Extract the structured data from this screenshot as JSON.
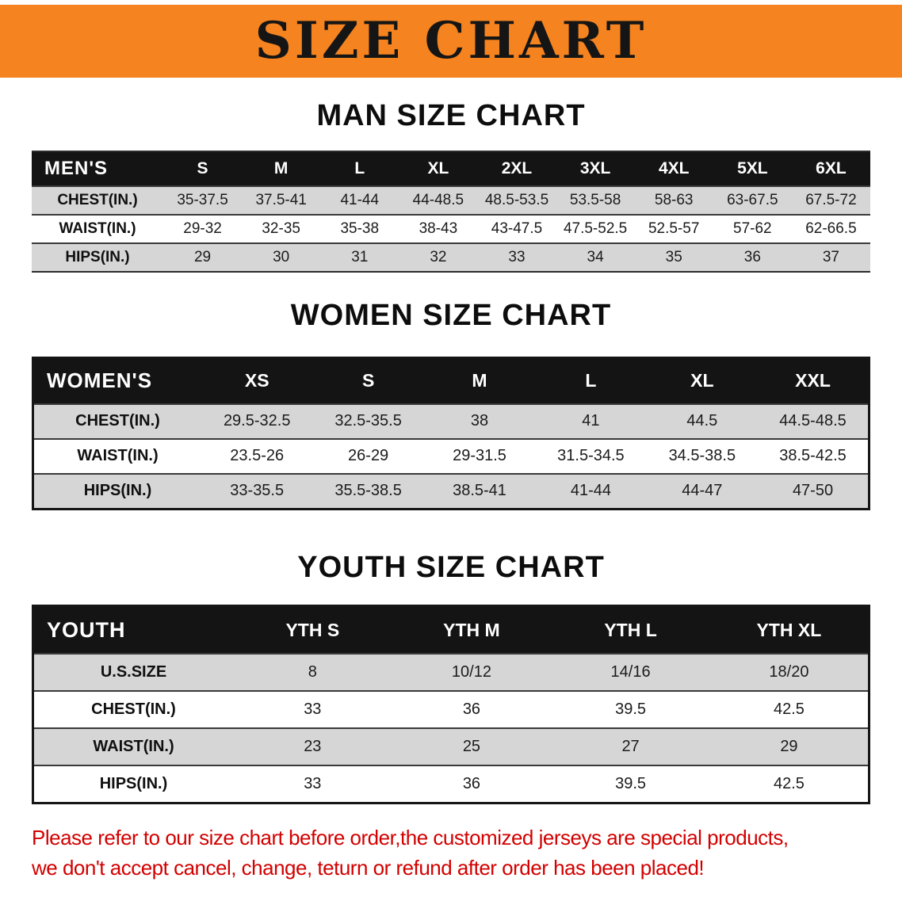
{
  "banner": {
    "title": "SIZE CHART"
  },
  "chart_data": [
    {
      "type": "table",
      "title": "MAN SIZE CHART",
      "table_label": "MEN'S",
      "columns": [
        "S",
        "M",
        "L",
        "XL",
        "2XL",
        "3XL",
        "4XL",
        "5XL",
        "6XL"
      ],
      "rows": [
        {
          "label": "CHEST(IN.)",
          "values": [
            "35-37.5",
            "37.5-41",
            "41-44",
            "44-48.5",
            "48.5-53.5",
            "53.5-58",
            "58-63",
            "63-67.5",
            "67.5-72"
          ]
        },
        {
          "label": "WAIST(IN.)",
          "values": [
            "29-32",
            "32-35",
            "35-38",
            "38-43",
            "43-47.5",
            "47.5-52.5",
            "52.5-57",
            "57-62",
            "62-66.5"
          ]
        },
        {
          "label": "HIPS(IN.)",
          "values": [
            "29",
            "30",
            "31",
            "32",
            "33",
            "34",
            "35",
            "36",
            "37"
          ]
        }
      ]
    },
    {
      "type": "table",
      "title": "WOMEN SIZE CHART",
      "table_label": "WOMEN'S",
      "columns": [
        "XS",
        "S",
        "M",
        "L",
        "XL",
        "XXL"
      ],
      "rows": [
        {
          "label": "CHEST(IN.)",
          "values": [
            "29.5-32.5",
            "32.5-35.5",
            "38",
            "41",
            "44.5",
            "44.5-48.5"
          ]
        },
        {
          "label": "WAIST(IN.)",
          "values": [
            "23.5-26",
            "26-29",
            "29-31.5",
            "31.5-34.5",
            "34.5-38.5",
            "38.5-42.5"
          ]
        },
        {
          "label": "HIPS(IN.)",
          "values": [
            "33-35.5",
            "35.5-38.5",
            "38.5-41",
            "41-44",
            "44-47",
            "47-50"
          ]
        }
      ]
    },
    {
      "type": "table",
      "title": "YOUTH SIZE CHART",
      "table_label": "YOUTH",
      "columns": [
        "YTH S",
        "YTH M",
        "YTH L",
        "YTH XL"
      ],
      "rows": [
        {
          "label": "U.S.SIZE",
          "values": [
            "8",
            "10/12",
            "14/16",
            "18/20"
          ]
        },
        {
          "label": "CHEST(IN.)",
          "values": [
            "33",
            "36",
            "39.5",
            "42.5"
          ]
        },
        {
          "label": "WAIST(IN.)",
          "values": [
            "23",
            "25",
            "27",
            "29"
          ]
        },
        {
          "label": "HIPS(IN.)",
          "values": [
            "33",
            "36",
            "39.5",
            "42.5"
          ]
        }
      ]
    }
  ],
  "disclaimer": {
    "line1": "Please refer to our size chart before order,the customized jerseys are special products,",
    "line2": "we don't accept cancel, change, teturn or refund after order has been placed!"
  },
  "colors": {
    "banner_bg": "#f5831f",
    "table_header_bg": "#141414",
    "table_header_text": "#ffffff",
    "row_stripe_bg": "#d6d6d6",
    "disclaimer_text": "#d20000"
  }
}
